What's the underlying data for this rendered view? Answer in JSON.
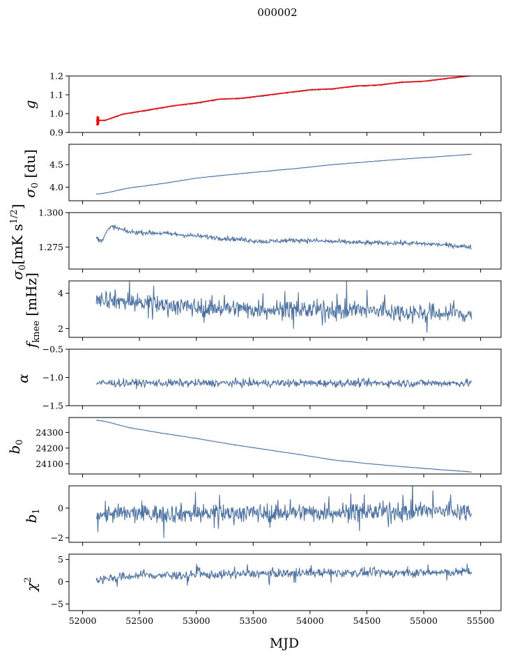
{
  "figure_title": "000002",
  "series_color": "#4c72a4",
  "fit_color": "#ff0000",
  "chart_data": {
    "type": "line",
    "title": "000002",
    "xlabel": "MJD",
    "xlim": [
      51880,
      55680
    ],
    "xticks": [
      52000,
      52500,
      53000,
      53500,
      54000,
      54500,
      55000,
      55500
    ],
    "x_start": 52120,
    "x_end": 55420,
    "panels": [
      {
        "id": "g",
        "ylabel": "g",
        "ylim": [
          0.9,
          1.2
        ],
        "yticks": [
          0.9,
          1.0,
          1.1,
          1.2
        ],
        "yticklabels": [
          "0.9",
          "1.0",
          "1.1",
          "1.2"
        ],
        "trend": [
          [
            52120,
            0.962
          ],
          [
            52200,
            0.963
          ],
          [
            52350,
            0.995
          ],
          [
            52500,
            1.01
          ],
          [
            52800,
            1.04
          ],
          [
            53000,
            1.055
          ],
          [
            53200,
            1.075
          ],
          [
            53400,
            1.08
          ],
          [
            53600,
            1.095
          ],
          [
            53800,
            1.11
          ],
          [
            54000,
            1.125
          ],
          [
            54200,
            1.13
          ],
          [
            54400,
            1.145
          ],
          [
            54600,
            1.15
          ],
          [
            54800,
            1.165
          ],
          [
            55000,
            1.17
          ],
          [
            55200,
            1.185
          ],
          [
            55420,
            1.2
          ]
        ],
        "noise": 0.002,
        "has_fit": true,
        "fit_spike": [
          52125,
          0.96,
          0.03
        ]
      },
      {
        "id": "sigma0-du",
        "ylabel": "σ₀ [du]",
        "ylim": [
          3.7,
          4.95
        ],
        "yticks": [
          4.0,
          4.5
        ],
        "yticklabels": [
          "4.0",
          "4.5"
        ],
        "trend": [
          [
            52120,
            3.85
          ],
          [
            52200,
            3.87
          ],
          [
            52400,
            3.98
          ],
          [
            52700,
            4.08
          ],
          [
            53000,
            4.2
          ],
          [
            53300,
            4.28
          ],
          [
            53600,
            4.35
          ],
          [
            53900,
            4.42
          ],
          [
            54200,
            4.5
          ],
          [
            54500,
            4.56
          ],
          [
            54800,
            4.62
          ],
          [
            55100,
            4.67
          ],
          [
            55420,
            4.73
          ]
        ],
        "noise": 0.004
      },
      {
        "id": "sigma0-mk",
        "ylabel": "σ₀[mK s^1/2]",
        "ylim": [
          1.259,
          1.3
        ],
        "yticks": [
          1.275,
          1.3
        ],
        "yticklabels": [
          "1.275",
          "1.300"
        ],
        "trend": [
          [
            52120,
            1.282
          ],
          [
            52160,
            1.279
          ],
          [
            52220,
            1.287
          ],
          [
            52260,
            1.29
          ],
          [
            52400,
            1.286
          ],
          [
            52700,
            1.285
          ],
          [
            53000,
            1.283
          ],
          [
            53300,
            1.281
          ],
          [
            53600,
            1.279
          ],
          [
            53900,
            1.28
          ],
          [
            54200,
            1.279
          ],
          [
            54500,
            1.278
          ],
          [
            54800,
            1.278
          ],
          [
            55100,
            1.277
          ],
          [
            55420,
            1.275
          ]
        ],
        "noise": 0.0012
      },
      {
        "id": "fknee",
        "ylabel": "f_knee [mHz]",
        "ylim": [
          1.5,
          4.7
        ],
        "yticks": [
          2,
          4
        ],
        "yticklabels": [
          "2",
          "4"
        ],
        "trend": [
          [
            52120,
            3.8
          ],
          [
            52300,
            3.6
          ],
          [
            52600,
            3.4
          ],
          [
            53000,
            3.2
          ],
          [
            53500,
            3.1
          ],
          [
            54000,
            3.05
          ],
          [
            54500,
            3.0
          ],
          [
            55000,
            2.9
          ],
          [
            55420,
            2.8
          ]
        ],
        "noise": 0.38
      },
      {
        "id": "alpha",
        "ylabel": "α",
        "ylim": [
          -1.5,
          -0.5
        ],
        "yticks": [
          -1.5,
          -1.0,
          -0.5
        ],
        "yticklabels": [
          "−1.5",
          "−1.0",
          "−0.5"
        ],
        "trend": [
          [
            52120,
            -1.1
          ],
          [
            55420,
            -1.1
          ]
        ],
        "noise": 0.05
      },
      {
        "id": "b0",
        "ylabel": "b₀",
        "ylim": [
          24035,
          24395
        ],
        "yticks": [
          24100,
          24200,
          24300
        ],
        "yticklabels": [
          "24100",
          "24200",
          "24300"
        ],
        "trend": [
          [
            52120,
            24378
          ],
          [
            52200,
            24370
          ],
          [
            52400,
            24332
          ],
          [
            52700,
            24295
          ],
          [
            53000,
            24262
          ],
          [
            53300,
            24225
          ],
          [
            53600,
            24192
          ],
          [
            53900,
            24160
          ],
          [
            54200,
            24125
          ],
          [
            54500,
            24102
          ],
          [
            54800,
            24082
          ],
          [
            55100,
            24065
          ],
          [
            55420,
            24048
          ]
        ],
        "noise": 0.8
      },
      {
        "id": "b1",
        "ylabel": "b₁",
        "ylim": [
          -2.3,
          1.5
        ],
        "yticks": [
          -2,
          0
        ],
        "yticklabels": [
          "−2",
          "0"
        ],
        "trend": [
          [
            52120,
            -0.4
          ],
          [
            55420,
            -0.2
          ]
        ],
        "noise": 0.45
      },
      {
        "id": "chi2",
        "ylabel": "χ²",
        "ylim": [
          -6.5,
          6.2
        ],
        "yticks": [
          -5,
          0,
          5
        ],
        "yticklabels": [
          "−5",
          "0",
          "5"
        ],
        "trend": [
          [
            52120,
            0.5
          ],
          [
            52500,
            1.4
          ],
          [
            53000,
            1.5
          ],
          [
            53500,
            1.8
          ],
          [
            54000,
            2.0
          ],
          [
            54500,
            2.0
          ],
          [
            55000,
            2.0
          ],
          [
            55420,
            2.2
          ]
        ],
        "noise": 0.7
      }
    ]
  }
}
